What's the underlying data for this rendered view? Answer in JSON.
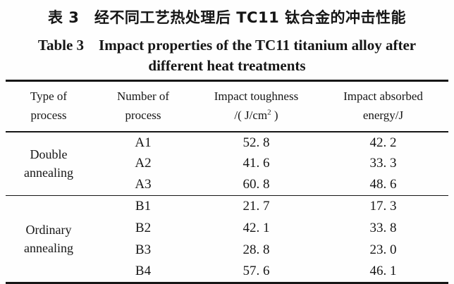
{
  "page": {
    "title_cn": "表 3　经不同工艺热处理后 TC11 钛合金的冲击性能",
    "title_en_line1": "Table 3　Impact properties of the TC11 titanium alloy after",
    "title_en_line2": "different heat treatments"
  },
  "table": {
    "header": {
      "col1_line1": "Type of",
      "col1_line2": "process",
      "col2_line1": "Number of",
      "col2_line2": "process",
      "col3_line1": "Impact toughness",
      "col3_line2_prefix": "/( J/cm",
      "col3_line2_sup": "2",
      "col3_line2_suffix": " )",
      "col4_line1": "Impact absorbed",
      "col4_line2": "energy/J"
    },
    "groups": [
      {
        "process_type": "Double annealing",
        "rows": [
          {
            "number": "A1",
            "toughness": "52. 8",
            "energy": "42. 2"
          },
          {
            "number": "A2",
            "toughness": "41. 6",
            "energy": "33. 3"
          },
          {
            "number": "A3",
            "toughness": "60. 8",
            "energy": "48. 6"
          }
        ]
      },
      {
        "process_type": "Ordinary annealing",
        "rows": [
          {
            "number": "B1",
            "toughness": "21. 7",
            "energy": "17. 3"
          },
          {
            "number": "B2",
            "toughness": "42. 1",
            "energy": "33. 8"
          },
          {
            "number": "B3",
            "toughness": "28. 8",
            "energy": "23. 0"
          },
          {
            "number": "B4",
            "toughness": "57. 6",
            "energy": "46. 1"
          }
        ]
      }
    ]
  }
}
